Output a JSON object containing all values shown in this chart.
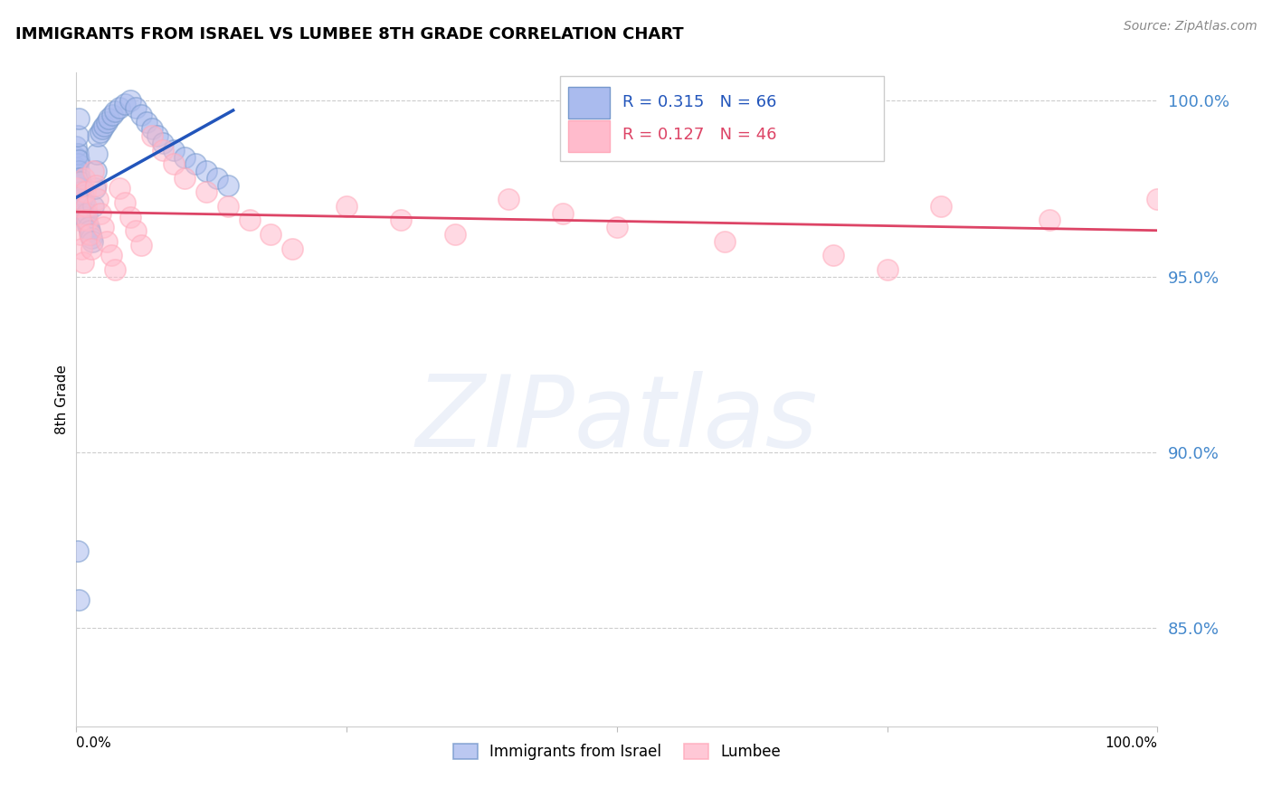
{
  "title": "IMMIGRANTS FROM ISRAEL VS LUMBEE 8TH GRADE CORRELATION CHART",
  "source": "Source: ZipAtlas.com",
  "ylabel": "8th Grade",
  "legend_label1": "Immigrants from Israel",
  "legend_label2": "Lumbee",
  "R1": 0.315,
  "N1": 66,
  "R2": 0.127,
  "N2": 46,
  "blue_fill": "#aabbee",
  "blue_edge": "#7799cc",
  "pink_fill": "#ffbbcc",
  "pink_edge": "#ffaabb",
  "blue_line_color": "#2255bb",
  "pink_line_color": "#dd4466",
  "yticks": [
    0.85,
    0.9,
    0.95,
    1.0
  ],
  "ytick_labels": [
    "85.0%",
    "90.0%",
    "95.0%",
    "100.0%"
  ],
  "ymin": 0.822,
  "ymax": 1.008,
  "xmin": 0.0,
  "xmax": 1.0,
  "blue_x": [
    0.0,
    0.0,
    0.0,
    0.0,
    0.0,
    0.001,
    0.001,
    0.001,
    0.001,
    0.001,
    0.002,
    0.002,
    0.002,
    0.002,
    0.003,
    0.003,
    0.003,
    0.004,
    0.004,
    0.004,
    0.005,
    0.005,
    0.006,
    0.006,
    0.007,
    0.007,
    0.008,
    0.009,
    0.01,
    0.01,
    0.011,
    0.012,
    0.013,
    0.014,
    0.015,
    0.016,
    0.017,
    0.018,
    0.019,
    0.02,
    0.022,
    0.024,
    0.026,
    0.028,
    0.03,
    0.033,
    0.036,
    0.04,
    0.045,
    0.05,
    0.055,
    0.06,
    0.065,
    0.07,
    0.075,
    0.08,
    0.09,
    0.1,
    0.11,
    0.12,
    0.13,
    0.14,
    0.001,
    0.002,
    0.001,
    0.002
  ],
  "blue_y": [
    0.975,
    0.978,
    0.981,
    0.984,
    0.987,
    0.973,
    0.976,
    0.979,
    0.982,
    0.985,
    0.974,
    0.977,
    0.98,
    0.983,
    0.972,
    0.975,
    0.978,
    0.971,
    0.974,
    0.977,
    0.969,
    0.972,
    0.97,
    0.973,
    0.968,
    0.971,
    0.967,
    0.966,
    0.965,
    0.968,
    0.964,
    0.963,
    0.962,
    0.961,
    0.96,
    0.97,
    0.975,
    0.98,
    0.985,
    0.99,
    0.991,
    0.992,
    0.993,
    0.994,
    0.995,
    0.996,
    0.997,
    0.998,
    0.999,
    1.0,
    0.998,
    0.996,
    0.994,
    0.992,
    0.99,
    0.988,
    0.986,
    0.984,
    0.982,
    0.98,
    0.978,
    0.976,
    0.872,
    0.858,
    0.99,
    0.995
  ],
  "pink_x": [
    0.0,
    0.002,
    0.003,
    0.004,
    0.005,
    0.006,
    0.007,
    0.008,
    0.009,
    0.01,
    0.012,
    0.014,
    0.016,
    0.018,
    0.02,
    0.022,
    0.025,
    0.028,
    0.032,
    0.036,
    0.04,
    0.045,
    0.05,
    0.055,
    0.06,
    0.07,
    0.08,
    0.09,
    0.1,
    0.12,
    0.14,
    0.16,
    0.18,
    0.2,
    0.25,
    0.3,
    0.35,
    0.4,
    0.45,
    0.5,
    0.6,
    0.7,
    0.75,
    0.8,
    0.9,
    1.0
  ],
  "pink_y": [
    0.975,
    0.97,
    0.966,
    0.962,
    0.958,
    0.954,
    0.978,
    0.974,
    0.97,
    0.966,
    0.962,
    0.958,
    0.98,
    0.976,
    0.972,
    0.968,
    0.964,
    0.96,
    0.956,
    0.952,
    0.975,
    0.971,
    0.967,
    0.963,
    0.959,
    0.99,
    0.986,
    0.982,
    0.978,
    0.974,
    0.97,
    0.966,
    0.962,
    0.958,
    0.97,
    0.966,
    0.962,
    0.972,
    0.968,
    0.964,
    0.96,
    0.956,
    0.952,
    0.97,
    0.966,
    0.972
  ]
}
